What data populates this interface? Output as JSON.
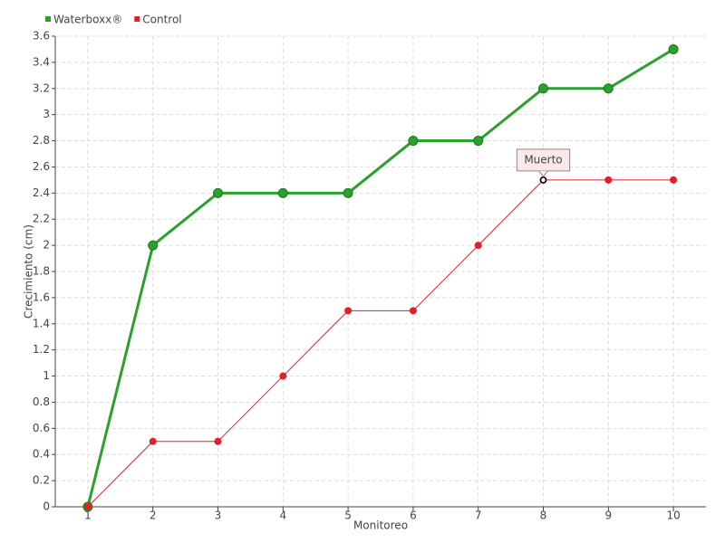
{
  "chart_data": {
    "type": "line",
    "x": [
      1,
      2,
      3,
      4,
      5,
      6,
      7,
      8,
      9,
      10
    ],
    "xlim": [
      0.5,
      10.5
    ],
    "xticks": [
      1,
      2,
      3,
      4,
      5,
      6,
      7,
      8,
      9,
      10
    ],
    "ylim": [
      0,
      3.6
    ],
    "yticks": [
      0,
      0.2,
      0.4,
      0.6,
      0.8,
      1,
      1.2,
      1.4,
      1.6,
      1.8,
      2,
      2.2,
      2.4,
      2.6,
      2.8,
      3,
      3.2,
      3.4,
      3.6
    ],
    "xlabel": "Monitoreo",
    "ylabel": "Crecimiento (cm)",
    "grid": true,
    "legend": "top-left",
    "series": [
      {
        "name": "Waterboxx®",
        "color": "#2ca02c",
        "values": [
          0,
          2.0,
          2.4,
          2.4,
          2.4,
          2.8,
          2.8,
          3.2,
          3.2,
          3.5
        ]
      },
      {
        "name": "Control",
        "color": "#e0202a",
        "values": [
          0,
          0.5,
          0.5,
          1.0,
          1.5,
          1.5,
          2.0,
          2.5,
          2.5,
          2.5
        ]
      }
    ],
    "annotations": [
      {
        "text": "Muerto",
        "x": 8,
        "y": 2.5
      }
    ]
  }
}
